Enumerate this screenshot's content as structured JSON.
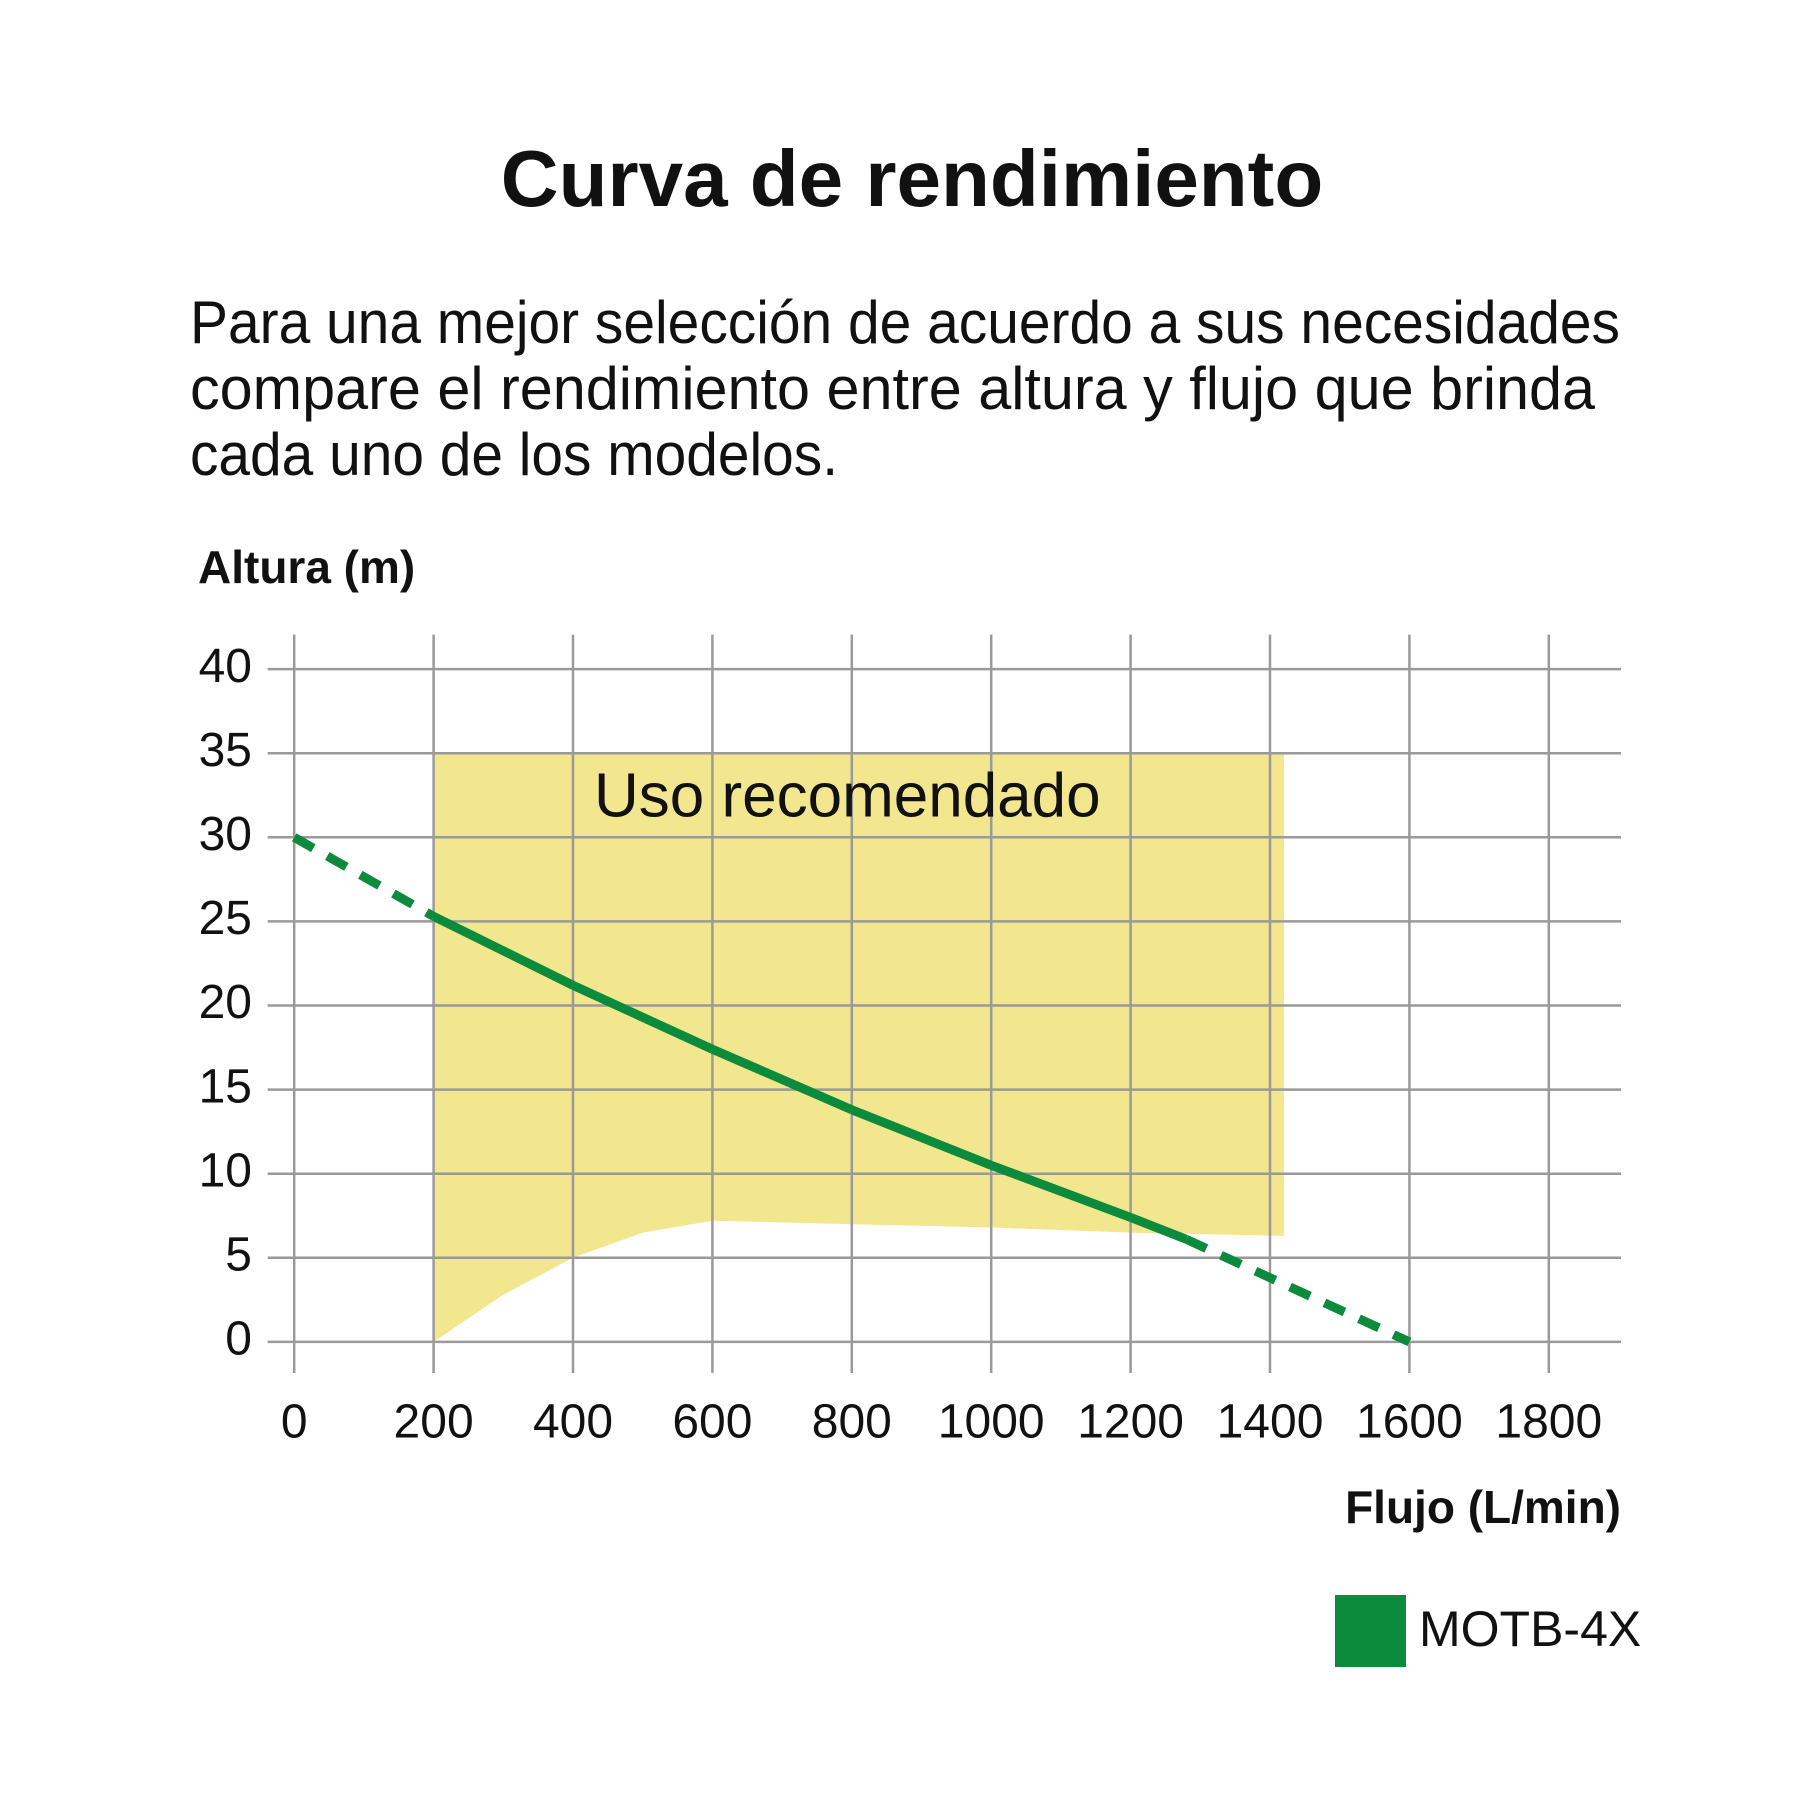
{
  "chart_data": {
    "type": "line",
    "title": "Curva de rendimiento",
    "description": [
      "Para una mejor selección de acuerdo a sus necesidades",
      "compare el rendimiento entre altura y flujo que brinda",
      "cada uno de los modelos."
    ],
    "y_label": "Altura (m)",
    "x_label": "Flujo (L/min)",
    "xlim": [
      0,
      1800
    ],
    "xticks": [
      0,
      200,
      400,
      600,
      800,
      1000,
      1200,
      1400,
      1600,
      1800
    ],
    "ylim": [
      0,
      40
    ],
    "yticks": [
      0,
      5,
      10,
      15,
      20,
      25,
      30,
      35,
      40
    ],
    "grid": true,
    "grid_color": "#9a9a9a",
    "x": [
      0,
      200,
      400,
      600,
      800,
      1000,
      1200,
      1280,
      1600
    ],
    "series": [
      {
        "name": "MOTB-4X",
        "color": "#0b8b3b",
        "values": [
          30,
          25.3,
          21.2,
          17.4,
          13.8,
          10.5,
          7.4,
          6.1,
          0
        ],
        "segment_styles": [
          "dashed",
          "solid",
          "solid",
          "solid",
          "solid",
          "solid",
          "solid",
          "dashed"
        ]
      }
    ],
    "region": {
      "label": "Uso recomendado",
      "color": "#f2e68f",
      "x": [
        200,
        300,
        400,
        500,
        600,
        1000,
        1200,
        1420
      ],
      "upper": [
        35,
        35,
        35,
        35,
        35,
        35,
        35,
        35
      ],
      "lower": [
        0,
        2.8,
        5,
        6.5,
        7.2,
        6.8,
        6.5,
        6.3
      ]
    }
  }
}
